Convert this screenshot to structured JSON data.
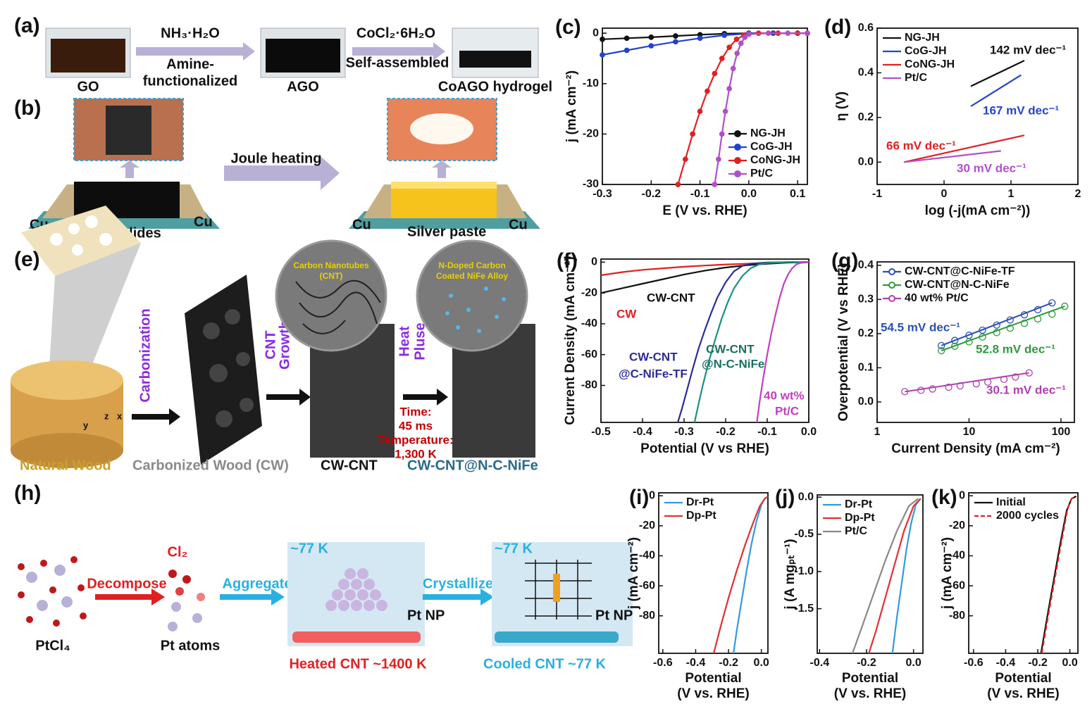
{
  "schematics": {
    "a": {
      "label": "(a)",
      "texts": [
        "NH₃·H₂O",
        "Amine-",
        "functionalized",
        "CoCl₂·6H₂O",
        "Self-assembled",
        "GO",
        "AGO",
        "CoAGO hydrogel"
      ]
    },
    "b": {
      "label": "(b)",
      "texts": [
        "Joule heating",
        "Cu",
        "Glass slides",
        "Cu",
        "Cu",
        "Silver paste",
        "Cu"
      ]
    },
    "e": {
      "label": "(e)",
      "texts": [
        "Carbonization",
        "CNT",
        "Growth",
        "Heat",
        "Pluse",
        "Time:",
        "45 ms",
        "Temperature:",
        "1,300 K",
        "Carbon Nanotubes",
        "(CNT)",
        "N-Doped Carbon",
        "Coated NiFe Alloy",
        "z",
        "y",
        "x",
        "Natural Wood",
        "Carbonized Wood (CW)",
        "CW-CNT",
        "CW-CNT@N-C-NiFe"
      ]
    },
    "h": {
      "label": "(h)",
      "texts": [
        "Decompose",
        "Cl₂",
        "Aggregate",
        "~77 K",
        "Pt NP",
        "Crystallize",
        "~77 K",
        "Pt NP",
        "PtCl₄",
        "Pt atoms",
        "Heated CNT ~1400 K",
        "Cooled CNT ~77 K"
      ]
    }
  },
  "chart_data": [
    {
      "type": "line",
      "panel": "(c)",
      "xlabel": "E (V vs. RHE)",
      "ylabel": "j (mA cm⁻²)",
      "xlim": [
        -0.3,
        0.12
      ],
      "xticks": [
        -0.3,
        -0.2,
        -0.1,
        {
          "value": 0,
          "label": "0.0"
        },
        0.1
      ],
      "ylim": [
        -30,
        1
      ],
      "yticks": [
        0,
        -10,
        -20,
        -30
      ],
      "legend": "lower right",
      "marker": "circle",
      "series": [
        {
          "name": "NG-JH",
          "color": "#111111",
          "x": [
            -0.3,
            -0.25,
            -0.2,
            -0.15,
            -0.1,
            -0.05,
            0,
            0.05,
            0.1,
            0.12
          ],
          "values": [
            -1.2,
            -1.0,
            -0.8,
            -0.55,
            -0.3,
            -0.1,
            0,
            0,
            0,
            0
          ]
        },
        {
          "name": "CoG-JH",
          "color": "#2244cc",
          "x": [
            -0.3,
            -0.25,
            -0.2,
            -0.15,
            -0.1,
            -0.05,
            0,
            0.05,
            0.1,
            0.12
          ],
          "values": [
            -4.3,
            -3.4,
            -2.5,
            -1.7,
            -1.0,
            -0.4,
            -0.05,
            0,
            0,
            0
          ]
        },
        {
          "name": "CoNG-JH",
          "color": "#e02020",
          "x": [
            -0.145,
            -0.13,
            -0.115,
            -0.1,
            -0.085,
            -0.07,
            -0.055,
            -0.04,
            -0.025,
            -0.01,
            0.02,
            0.06,
            0.1,
            0.12
          ],
          "values": [
            -30,
            -25,
            -20,
            -15.5,
            -11.5,
            -8,
            -5,
            -2.8,
            -1.2,
            -0.4,
            0,
            0,
            0,
            0
          ]
        },
        {
          "name": "Pt/C",
          "color": "#b050c8",
          "x": [
            -0.07,
            -0.062,
            -0.055,
            -0.048,
            -0.04,
            -0.032,
            -0.024,
            -0.016,
            -0.008,
            0,
            0.04,
            0.08,
            0.12
          ],
          "values": [
            -30,
            -25,
            -20,
            -15.5,
            -11,
            -7,
            -4,
            -2,
            -0.8,
            -0.2,
            0,
            0,
            0
          ]
        }
      ]
    },
    {
      "type": "line",
      "panel": "(d)",
      "xlabel": "log (-j(mA cm⁻²))",
      "ylabel": "η (V)",
      "xlim": [
        -1,
        2
      ],
      "xticks": [
        -1,
        0,
        1,
        2
      ],
      "ylim": [
        -0.1,
        0.6
      ],
      "yticks": [
        {
          "value": 0,
          "label": "0.0"
        },
        0.2,
        0.4,
        0.6
      ],
      "legend": "upper left",
      "series": [
        {
          "name": "NG-JH",
          "color": "#111111",
          "x": [
            0.4,
            1.2
          ],
          "values": [
            0.34,
            0.455
          ]
        },
        {
          "name": "CoG-JH",
          "color": "#2244cc",
          "x": [
            0.4,
            1.15
          ],
          "values": [
            0.25,
            0.39
          ]
        },
        {
          "name": "CoNG-JH",
          "color": "#e02020",
          "x": [
            -0.6,
            1.2
          ],
          "values": [
            0.0,
            0.12
          ]
        },
        {
          "name": "Pt/C",
          "color": "#b050c8",
          "x": [
            -0.6,
            0.85
          ],
          "values": [
            0.0,
            0.05
          ]
        }
      ],
      "annotations": [
        {
          "text": "142 mV dec⁻¹",
          "color": "#111111"
        },
        {
          "text": "167 mV dec⁻¹",
          "color": "#2244cc"
        },
        {
          "text": "66 mV dec⁻¹",
          "color": "#e02020"
        },
        {
          "text": "30 mV dec⁻¹",
          "color": "#b050c8"
        }
      ]
    },
    {
      "type": "line",
      "panel": "(f)",
      "xlabel": "Potential (V vs RHE)",
      "ylabel": "Current Density (mA cm⁻²)",
      "xlim": [
        -0.5,
        0
      ],
      "xticks": [
        -0.5,
        -0.4,
        -0.3,
        -0.2,
        -0.1,
        {
          "value": 0,
          "label": "0.0"
        }
      ],
      "ylim": [
        -104,
        2
      ],
      "yticks": [
        0,
        -20,
        -40,
        -60,
        -80
      ],
      "series": [
        {
          "color": "#e02020",
          "x": [
            -0.5,
            -0.45,
            -0.4,
            -0.35,
            -0.3,
            -0.25,
            -0.2,
            -0.15,
            -0.1,
            -0.05,
            0
          ],
          "values": [
            -8.5,
            -6.5,
            -5,
            -4,
            -3,
            -2.2,
            -1.5,
            -1,
            -0.5,
            -0.2,
            0
          ]
        },
        {
          "color": "#111111",
          "x": [
            -0.5,
            -0.45,
            -0.4,
            -0.35,
            -0.3,
            -0.25,
            -0.2,
            -0.15,
            -0.1,
            -0.05,
            0
          ],
          "values": [
            -20,
            -17,
            -14,
            -11,
            -8,
            -5.5,
            -3.5,
            -2,
            -1,
            -0.3,
            0
          ]
        },
        {
          "color": "#2c2c96",
          "x": [
            -0.315,
            -0.305,
            -0.295,
            -0.28,
            -0.265,
            -0.25,
            -0.235,
            -0.22,
            -0.2,
            -0.18,
            -0.16,
            -0.14,
            -0.1,
            -0.05,
            0
          ],
          "values": [
            -104,
            -95,
            -85,
            -70,
            -56,
            -44,
            -33,
            -23,
            -13,
            -6,
            -2.5,
            -1,
            -0.2,
            0,
            0
          ]
        },
        {
          "color": "#1a9080",
          "x": [
            -0.275,
            -0.265,
            -0.255,
            -0.24,
            -0.225,
            -0.21,
            -0.195,
            -0.18,
            -0.16,
            -0.14,
            -0.12,
            -0.1,
            -0.05,
            0
          ],
          "values": [
            -104,
            -92,
            -80,
            -64,
            -50,
            -37,
            -26,
            -17,
            -9,
            -4,
            -1.5,
            -0.5,
            0,
            0
          ]
        },
        {
          "color": "#c040c0",
          "x": [
            -0.125,
            -0.118,
            -0.11,
            -0.1,
            -0.09,
            -0.08,
            -0.07,
            -0.06,
            -0.05,
            -0.04,
            -0.03,
            -0.02,
            0
          ],
          "values": [
            -104,
            -90,
            -76,
            -60,
            -46,
            -34,
            -23,
            -14,
            -8,
            -4,
            -1.5,
            -0.5,
            0
          ]
        }
      ],
      "annotations": [
        {
          "text": "CW",
          "color": "#e02020"
        },
        {
          "text": "CW-CNT",
          "color": "#111111"
        },
        {
          "text": "CW-CNT",
          "color": "#2c2c96"
        },
        {
          "text": "@C-NiFe-TF",
          "color": "#2c2c96"
        },
        {
          "text": "CW-CNT",
          "color": "#1a7060"
        },
        {
          "text": "@N-C-NiFe",
          "color": "#1a7060"
        },
        {
          "text": "40 wt%",
          "color": "#c040c0"
        },
        {
          "text": "Pt/C",
          "color": "#c040c0"
        }
      ]
    },
    {
      "type": "scatter",
      "panel": "(g)",
      "xlabel": "Current Density (mA cm⁻²)",
      "ylabel": "Overpotential (V vs RHE)",
      "xlog": true,
      "xlim": [
        1,
        140
      ],
      "xticks": [
        1,
        10,
        100
      ],
      "ylim": [
        -0.06,
        0.41
      ],
      "yticks": [
        {
          "value": 0,
          "label": "0.0"
        },
        0.1,
        0.2,
        0.3,
        0.4
      ],
      "legend": "upper left",
      "marker": "open-circle",
      "fit": true,
      "series": [
        {
          "name": "CW-CNT@C-NiFe-TF",
          "color": "#2b4fb5",
          "x": [
            5,
            7,
            10,
            14,
            20,
            28,
            40,
            56,
            80
          ],
          "values": [
            0.165,
            0.18,
            0.195,
            0.21,
            0.225,
            0.24,
            0.255,
            0.27,
            0.29
          ]
        },
        {
          "name": "CW-CNT@N-C-NiFe",
          "color": "#2e9a3a",
          "x": [
            5,
            7,
            10,
            14,
            20,
            28,
            40,
            56,
            80,
            110
          ],
          "values": [
            0.15,
            0.163,
            0.176,
            0.19,
            0.203,
            0.216,
            0.23,
            0.243,
            0.257,
            0.28
          ]
        },
        {
          "name": "40 wt% Pt/C",
          "color": "#b040b0",
          "x": [
            2,
            3,
            4,
            6,
            8,
            12,
            16,
            24,
            32,
            45
          ],
          "values": [
            0.03,
            0.034,
            0.038,
            0.043,
            0.047,
            0.053,
            0.058,
            0.066,
            0.073,
            0.085
          ]
        }
      ],
      "annotations": [
        {
          "text": "54.5 mV dec⁻¹",
          "color": "#2b4fb5"
        },
        {
          "text": "52.8 mV dec⁻¹",
          "color": "#2e9a3a"
        },
        {
          "text": "30.1 mV dec⁻¹",
          "color": "#b040b0"
        }
      ]
    },
    {
      "type": "line",
      "panel": "(i)",
      "xlabel": [
        "Potential",
        "(V vs. RHE)"
      ],
      "ylabel": "j (mA cm⁻²)",
      "xlim": [
        -0.625,
        0.04
      ],
      "xticks": [
        -0.6,
        -0.4,
        -0.2,
        {
          "value": 0,
          "label": "0.0"
        }
      ],
      "ylim": [
        -105,
        2
      ],
      "yticks": [
        0,
        -20,
        -40,
        -60,
        -80
      ],
      "legend": "upper left",
      "series": [
        {
          "name": "Dr-Pt",
          "color": "#3399dd",
          "x": [
            -0.17,
            -0.15,
            -0.12,
            -0.09,
            -0.06,
            -0.03,
            0,
            0.02,
            0.04
          ],
          "values": [
            -105,
            -90,
            -70,
            -50,
            -32,
            -17,
            -6,
            -2,
            -0.5
          ]
        },
        {
          "name": "Dp-Pt",
          "color": "#e03030",
          "x": [
            -0.29,
            -0.25,
            -0.2,
            -0.15,
            -0.1,
            -0.05,
            -0.01,
            0.02,
            0.04
          ],
          "values": [
            -105,
            -88,
            -68,
            -50,
            -33,
            -18,
            -7,
            -2,
            -0.5
          ]
        }
      ]
    },
    {
      "type": "line",
      "panel": "(j)",
      "xlabel": [
        "Potential",
        "(V vs. RHE)"
      ],
      "ylabel": "j (A mgₚₜ⁻¹)",
      "xlim": [
        -0.41,
        0.04
      ],
      "xticks": [
        -0.4,
        -0.2,
        {
          "value": 0,
          "label": "0.0"
        }
      ],
      "ylim": [
        -2.1,
        0.03
      ],
      "yticks": [
        {
          "value": 0,
          "label": "0.0"
        },
        -0.5,
        {
          "value": -1,
          "label": "-1.0"
        },
        -1.5
      ],
      "legend": "upper left",
      "series": [
        {
          "name": "Dr-Pt",
          "color": "#3399dd",
          "x": [
            -0.09,
            -0.07,
            -0.05,
            -0.03,
            -0.01,
            0.01,
            0.03
          ],
          "values": [
            -2.1,
            -1.6,
            -1.15,
            -0.7,
            -0.35,
            -0.1,
            -0.02
          ]
        },
        {
          "name": "Dp-Pt",
          "color": "#e03030",
          "x": [
            -0.19,
            -0.16,
            -0.12,
            -0.08,
            -0.04,
            0,
            0.03
          ],
          "values": [
            -2.1,
            -1.8,
            -1.35,
            -0.9,
            -0.45,
            -0.12,
            -0.02
          ]
        },
        {
          "name": "Pt/C",
          "color": "#888888",
          "x": [
            -0.26,
            -0.22,
            -0.17,
            -0.12,
            -0.07,
            -0.02,
            0.02
          ],
          "values": [
            -2.1,
            -1.75,
            -1.3,
            -0.85,
            -0.45,
            -0.12,
            -0.02
          ]
        }
      ]
    },
    {
      "type": "line",
      "panel": "(k)",
      "xlabel": [
        "Potential",
        "(V vs. RHE)"
      ],
      "ylabel": "j (mA cm⁻²)",
      "xlim": [
        -0.63,
        0.05
      ],
      "xticks": [
        -0.6,
        -0.4,
        -0.2,
        {
          "value": 0,
          "label": "0.0"
        }
      ],
      "ylim": [
        -105,
        2
      ],
      "yticks": [
        0,
        -20,
        -40,
        -60,
        -80
      ],
      "legend": "upper left",
      "series": [
        {
          "name": "Initial",
          "color": "#111111",
          "x": [
            -0.18,
            -0.14,
            -0.1,
            -0.06,
            -0.02,
            0.01,
            0.04
          ],
          "values": [
            -105,
            -80,
            -56,
            -32,
            -10,
            -2,
            -0.3
          ]
        },
        {
          "name": "2000 cycles",
          "color": "#e02020",
          "line_style": "dashed",
          "x": [
            -0.175,
            -0.135,
            -0.095,
            -0.055,
            -0.015,
            0.01,
            0.04
          ],
          "values": [
            -105,
            -80,
            -56,
            -32,
            -9,
            -2,
            -0.3
          ]
        }
      ]
    }
  ]
}
